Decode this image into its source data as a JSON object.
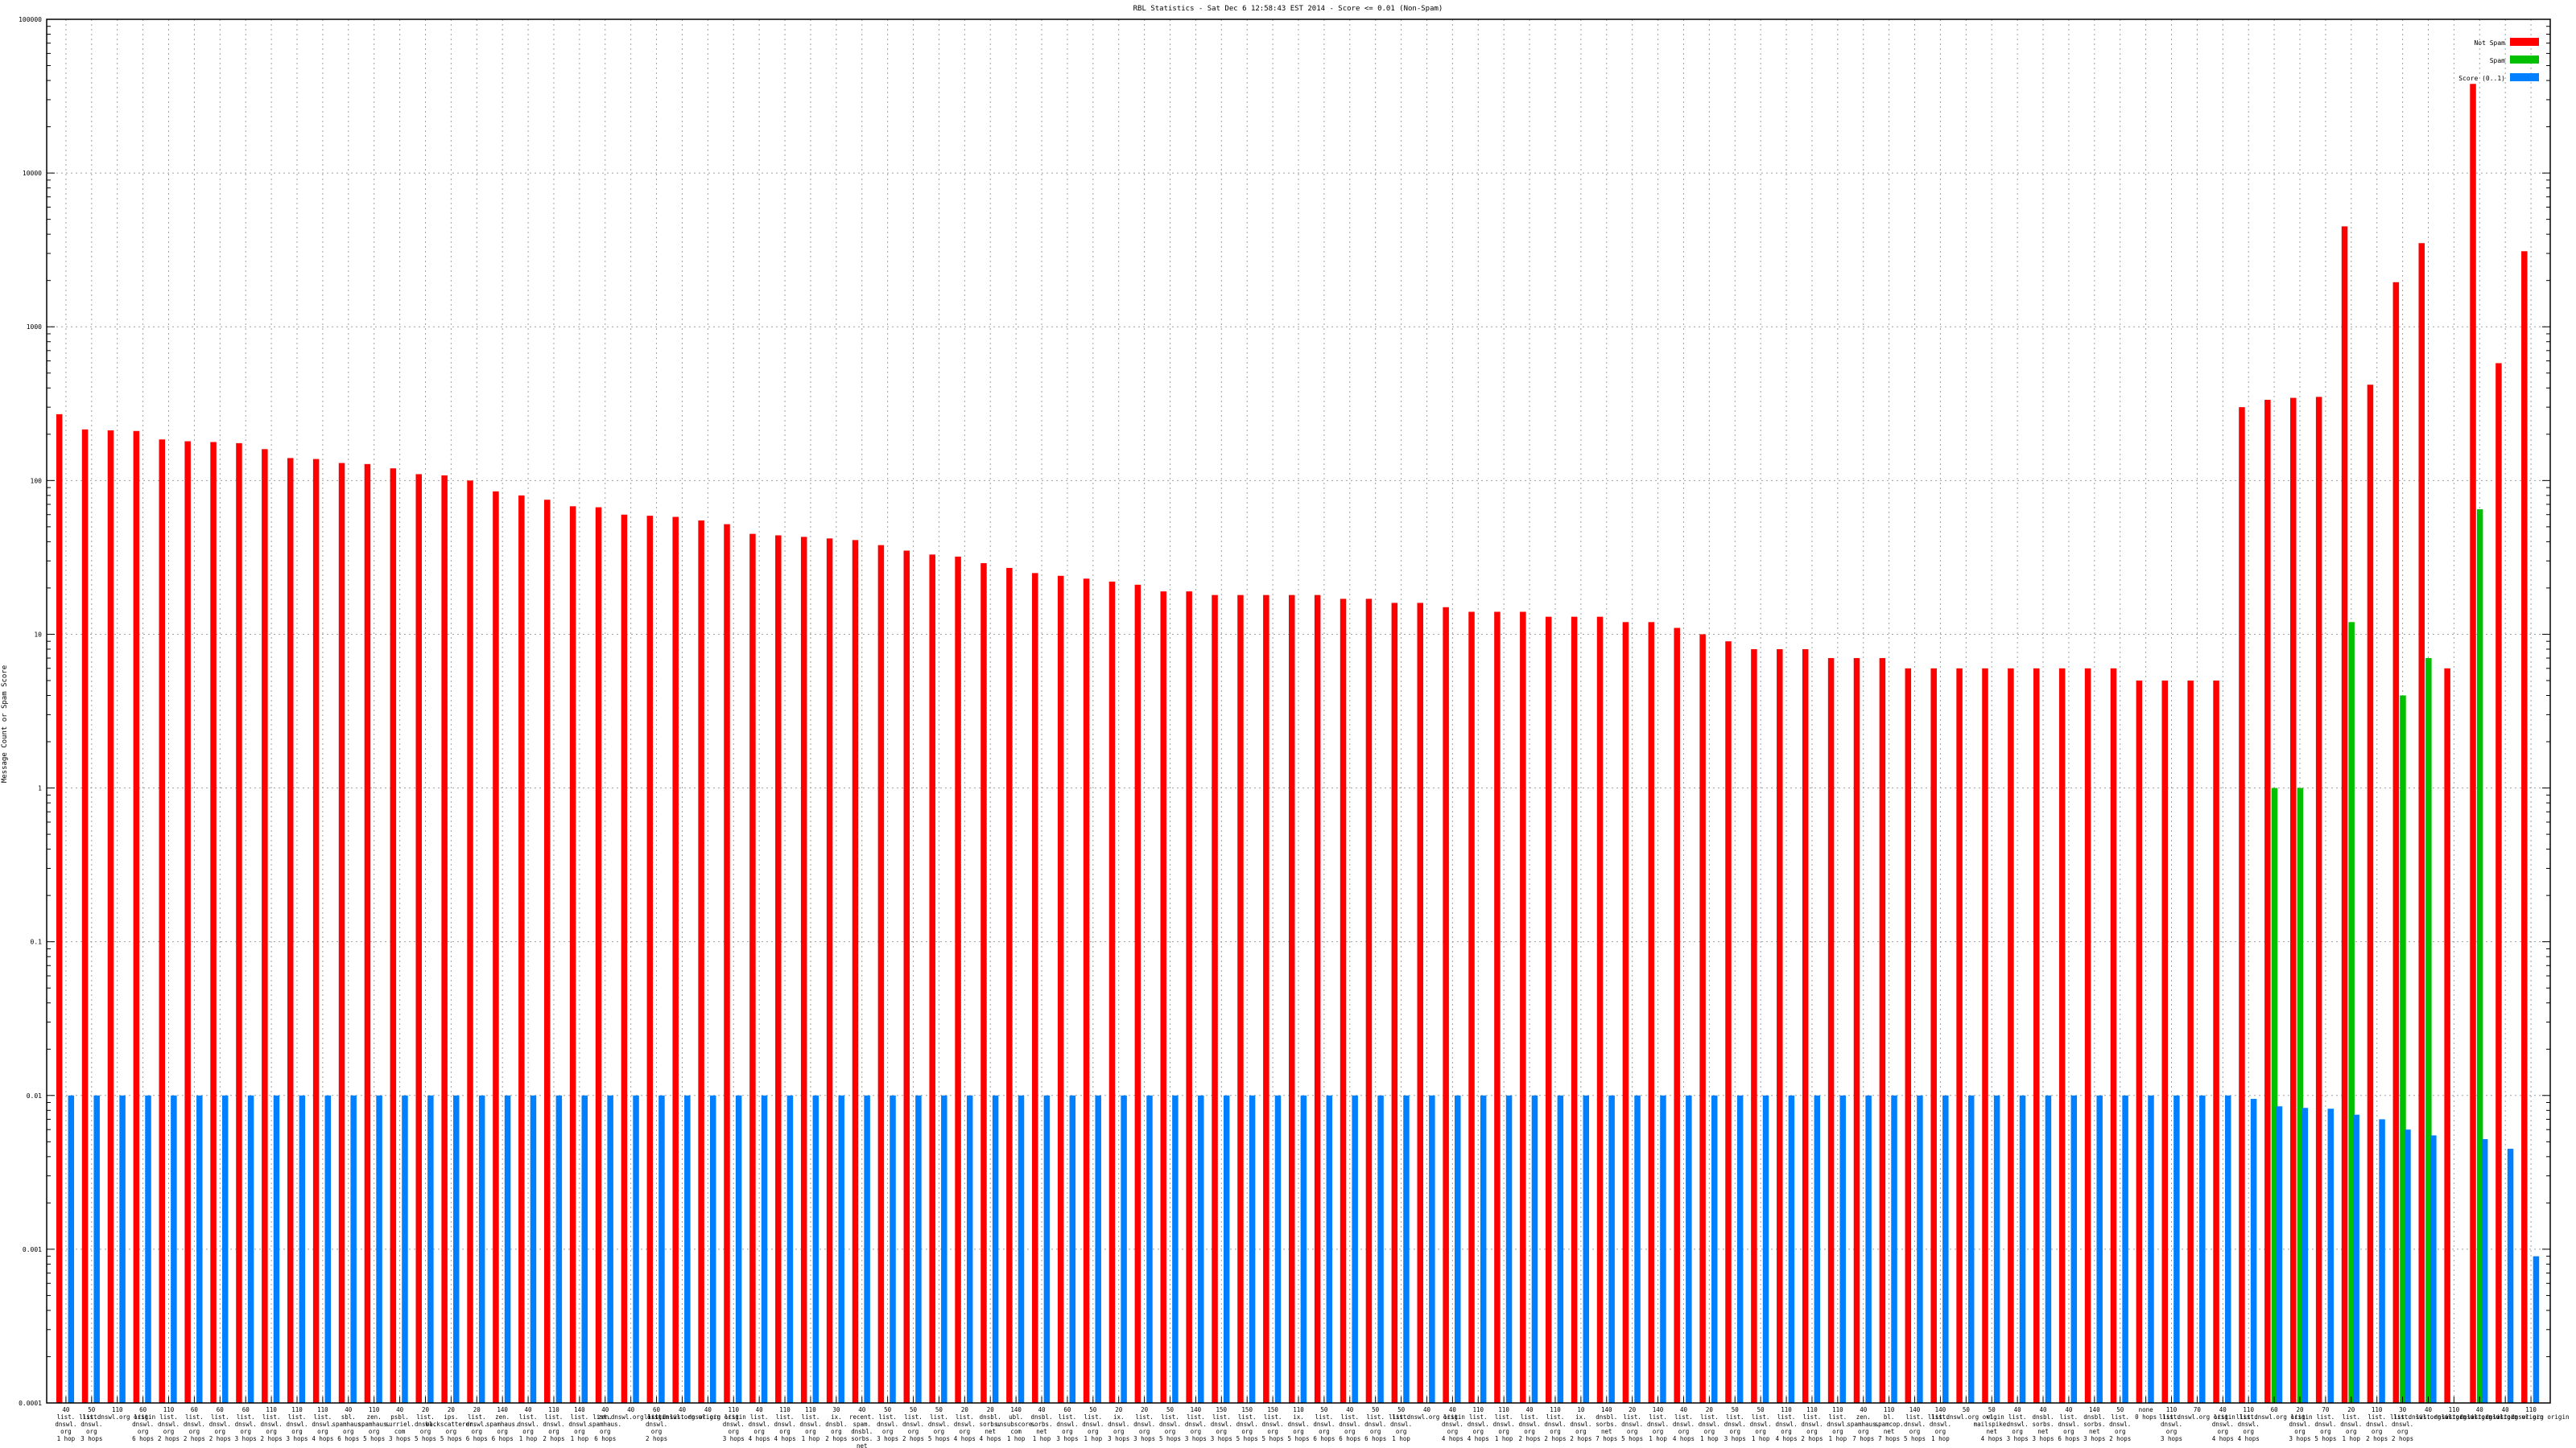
{
  "colors": {
    "not_spam": "#ff0000",
    "spam": "#00c000",
    "score": "#0080ff",
    "grid": "#a0a0a0",
    "axis": "#000000"
  },
  "chart_data": {
    "type": "bar",
    "title": "RBL Statistics - Sat Dec  6 12:58:43 EST 2014 - Score <= 0.01 (Non-Spam)",
    "ylabel": "Message Count or Spam Score",
    "xlabel": "",
    "yscale": "log",
    "ylim": [
      0.0001,
      100000
    ],
    "yticks": [
      "100000",
      "10000",
      "1000",
      "100",
      "10",
      "1",
      "0.1",
      "0.01",
      "0.001",
      "0.0001"
    ],
    "grid": true,
    "legend_position": "top-right",
    "series": [
      {
        "name": "Not Spam",
        "color_key": "not_spam",
        "values": [
          270,
          215,
          212,
          210,
          185,
          180,
          178,
          175,
          160,
          140,
          138,
          130,
          128,
          120,
          110,
          108,
          100,
          85,
          80,
          75,
          68,
          67,
          60,
          59,
          58,
          55,
          52,
          45,
          44,
          43,
          42,
          41,
          38,
          35,
          33,
          32,
          29,
          27,
          25,
          24,
          23,
          22,
          21,
          19,
          19,
          18,
          18,
          18,
          18,
          18,
          17,
          17,
          16,
          16,
          15,
          14,
          14,
          14,
          13,
          13,
          13,
          12,
          12,
          11,
          10,
          9,
          8,
          8,
          8,
          7,
          7,
          7,
          6,
          6,
          6,
          6,
          6,
          6,
          6,
          6,
          6,
          5,
          5,
          5,
          5,
          300,
          335,
          345,
          350,
          4500,
          420,
          1950,
          3500,
          6,
          38000,
          580,
          3100
        ]
      },
      {
        "name": "Spam",
        "color_key": "spam",
        "values": [
          0,
          0,
          0,
          0,
          0,
          0,
          0,
          0,
          0,
          0,
          0,
          0,
          0,
          0,
          0,
          0,
          0,
          0,
          0,
          0,
          0,
          0,
          0,
          0,
          0,
          0,
          0,
          0,
          0,
          0,
          0,
          0,
          0,
          0,
          0,
          0,
          0,
          0,
          0,
          0,
          0,
          0,
          0,
          0,
          0,
          0,
          0,
          0,
          0,
          0,
          0,
          0,
          0,
          0,
          0,
          0,
          0,
          0,
          0,
          0,
          0,
          0,
          0,
          0,
          0,
          0,
          0,
          0,
          0,
          0,
          0,
          0,
          0,
          0,
          0,
          0,
          0,
          0,
          0,
          0,
          0,
          0,
          0,
          0,
          0,
          0,
          1,
          1,
          0,
          12,
          0,
          4,
          7,
          0,
          65,
          0,
          0
        ]
      },
      {
        "name": "Score (0..1)",
        "color_key": "score",
        "values": [
          0.01,
          0.01,
          0.01,
          0.01,
          0.01,
          0.01,
          0.01,
          0.01,
          0.01,
          0.01,
          0.01,
          0.01,
          0.01,
          0.01,
          0.01,
          0.01,
          0.01,
          0.01,
          0.01,
          0.01,
          0.01,
          0.01,
          0.01,
          0.01,
          0.01,
          0.01,
          0.01,
          0.01,
          0.01,
          0.01,
          0.01,
          0.01,
          0.01,
          0.01,
          0.01,
          0.01,
          0.01,
          0.01,
          0.01,
          0.01,
          0.01,
          0.01,
          0.01,
          0.01,
          0.01,
          0.01,
          0.01,
          0.01,
          0.01,
          0.01,
          0.01,
          0.01,
          0.01,
          0.01,
          0.01,
          0.01,
          0.01,
          0.01,
          0.01,
          0.01,
          0.01,
          0.01,
          0.01,
          0.01,
          0.01,
          0.01,
          0.01,
          0.01,
          0.01,
          0.01,
          0.01,
          0.01,
          0.01,
          0.01,
          0.01,
          0.01,
          0.01,
          0.01,
          0.01,
          0.01,
          0.01,
          0.01,
          0.01,
          0.01,
          0.01,
          0.0095,
          0.0085,
          0.0083,
          0.0082,
          0.0075,
          0.007,
          0.006,
          0.0055,
          0.0001,
          0.0052,
          0.0045,
          0.0009
        ]
      }
    ],
    "categories": [
      "40 list.dnswl.org 1 hop",
      "50 list.dnswl.org 3 hops",
      "110 list.dnswl.org origin",
      "60 list.dnswl.org 6 hops",
      "110 list.dnswl.org 2 hops",
      "60 list.dnswl.org 2 hops",
      "60 list.dnswl.org 2 hops",
      "60 list.dnswl.org 3 hops",
      "110 list.dnswl.org 2 hops",
      "110 list.dnswl.org 3 hops",
      "110 list.dnswl.org 4 hops",
      "40 sbl.spamhaus.org 6 hops",
      "110 zen.spamhaus.org 5 hops",
      "40 psbl.surriel.com 3 hops",
      "20 list.dnswl.org 5 hops",
      "20 ips.backscatterer.org 5 hops",
      "20 list.dnswl.org 6 hops",
      "140 zen.spamhaus.org 6 hops",
      "40 list.dnswl.org 1 hop",
      "110 list.dnswl.org 2 hops",
      "140 list.dnswl.org 1 hop",
      "40 zen.spamhaus.org 6 hops",
      "40 list.dnswl.org origin",
      "60 list.dnswl.org 2 hops",
      "40 list.dnswl.org origin",
      "40 list.dnswl.org origin",
      "110 list.dnswl.org 3 hops",
      "40 list.dnswl.org 4 hops",
      "110 list.dnswl.org 4 hops",
      "110 list.dnswl.org 1 hop",
      "30 ix.dnsbl.org 2 hops",
      "40 recent.spam.dnsbl.sorbs.net 8 hops",
      "50 list.dnswl.org 3 hops",
      "50 list.dnswl.org 2 hops",
      "50 list.dnswl.org 5 hops",
      "20 list.dnswl.org 4 hops",
      "20 dnsbl.sorbs.net 4 hops",
      "140 ubl.unsubscore.com 1 hop",
      "40 dnsbl.sorbs.net 1 hop",
      "60 list.dnswl.org 3 hops",
      "50 list.dnswl.org 1 hop",
      "20 ix.dnswl.org 3 hops",
      "20 list.dnswl.org 3 hops",
      "50 list.dnswl.org 5 hops",
      "140 list.dnswl.org 3 hops",
      "150 list.dnswl.org 3 hops",
      "150 list.dnswl.org 5 hops",
      "150 list.dnswl.org 5 hops",
      "110 ix.dnswl.org 5 hops",
      "50 list.dnswl.org 6 hops",
      "40 list.dnswl.org 6 hops",
      "50 list.dnswl.org 6 hops",
      "50 list.dnswl.org 1 hop",
      "40 list.dnswl.org origin",
      "40 list.dnswl.org 4 hops",
      "110 list.dnswl.org 4 hops",
      "110 list.dnswl.org 1 hop",
      "40 list.dnswl.org 2 hops",
      "110 list.dnswl.org 2 hops",
      "10 ix.dnswl.org 2 hops",
      "140 dnsbl.sorbs.net 7 hops",
      "20 list.dnswl.org 5 hops",
      "140 list.dnswl.org 1 hop",
      "40 list.dnswl.org 4 hops",
      "20 list.dnswl.org 1 hop",
      "50 list.dnswl.org 3 hops",
      "50 list.dnswl.org 1 hop",
      "110 list.dnswl.org 4 hops",
      "110 list.dnswl.org 2 hops",
      "110 list.dnswl.org 1 hop",
      "40 zen.spamhaus.org 7 hops",
      "110 bl.spamcop.net 7 hops",
      "140 list.dnswl.org 5 hops",
      "140 list.dnswl.org 1 hop",
      "50 list.dnswl.org origin",
      "50 wl.mailspike.net 4 hops",
      "40 list.dnswl.org 3 hops",
      "40 dnsbl.sorbs.net 3 hops",
      "40 list.dnswl.org 6 hops",
      "140 dnsbl.sorbs.net 3 hops",
      "50 list.dnswl.org 2 hops",
      "none 0 hops",
      "110 list.dnswl.org 3 hops",
      "70 list.dnswl.org origin",
      "40 list.dnswl.org 4 hops",
      "110 list.dnswl.org 4 hops",
      "60 list.dnswl.org origin",
      "20 list.dnswl.org 3 hops",
      "70 list.dnswl.org 5 hops",
      "20 list.dnswl.org 1 hop",
      "110 list.dnswl.org 2 hops",
      "30 list.dnswl.org 2 hops",
      "40 list.dnswl.org origin",
      "110 list.dnswl.org origin",
      "40 list.dnswl.org origin",
      "40 list.dnswl.org origin",
      "110 list.dnswl.org origin"
    ]
  }
}
